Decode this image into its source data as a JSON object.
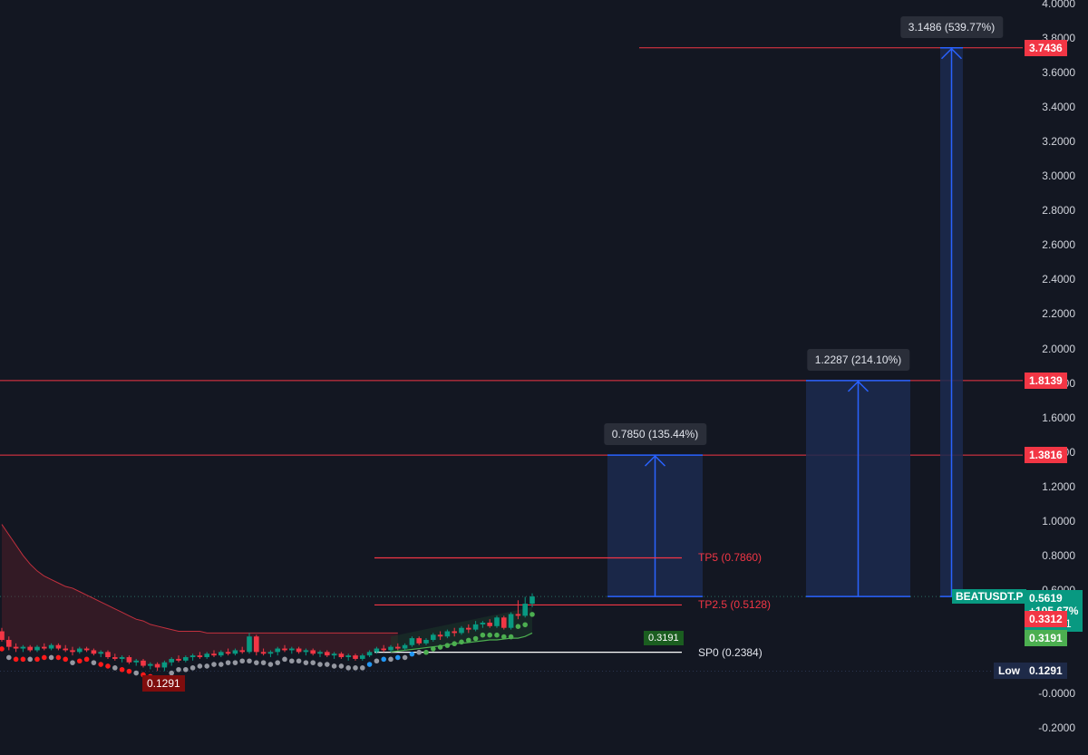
{
  "colors": {
    "background": "#131722",
    "level_line": "#f23645",
    "up_candle": "#089981",
    "down_candle": "#f23645",
    "projection_fill": "#1c2a4f",
    "projection_arrow": "#2962ff",
    "price_tag": "#089981",
    "green_tag": "#4caf50",
    "low_tag": "#1e2a48",
    "low_marker": "#7f0d0d"
  },
  "symbol": {
    "name": "BEATUSDT.P",
    "price": "0.5619",
    "change": "+105.67%",
    "countdown": "13:45:41"
  },
  "right_axis_tags": {
    "level_1": "3.7436",
    "level_2": "1.8139",
    "level_3": "1.3816",
    "red_price": "0.3312",
    "green_price": "0.3191",
    "low_label": "Low",
    "low_value": "0.1291"
  },
  "low_marker_label": "0.1291",
  "green_marker_label": "0.3191",
  "projections": [
    {
      "label": "0.7850 (135.44%)",
      "from": 0.5619,
      "to": 1.3816
    },
    {
      "label": "1.2287 (214.10%)",
      "from": 0.5619,
      "to": 1.8139
    },
    {
      "label": "3.1486 (539.77%)",
      "from": 0.5619,
      "to": 3.7436
    }
  ],
  "chart_data": {
    "type": "line",
    "title": "",
    "xlabel": "",
    "ylabel": "",
    "ylim": [
      -0.2,
      4.0
    ],
    "y_ticks": [
      "4.0000",
      "3.8000",
      "3.6000",
      "3.4000",
      "3.2000",
      "3.0000",
      "2.8000",
      "2.6000",
      "2.4000",
      "2.2000",
      "2.0000",
      "1.8000",
      "1.6000",
      "1.4000",
      "1.2000",
      "1.0000",
      "0.8000",
      "0.6000",
      "-0.0000",
      "-0.2000"
    ],
    "y_tick_values": [
      4.0,
      3.8,
      3.6,
      3.4,
      3.2,
      3.0,
      2.8,
      2.6,
      2.4,
      2.2,
      2.0,
      1.8,
      1.6,
      1.4,
      1.2,
      1.0,
      0.8,
      0.6,
      0.0,
      -0.2
    ],
    "levels": [
      {
        "label": "TP5 (0.7860)",
        "value": 0.786
      },
      {
        "label": "TP2.5 (0.5128)",
        "value": 0.5128
      },
      {
        "label": "SP0 (0.2384)",
        "value": 0.2384
      }
    ],
    "resistance_levels": [
      3.7436,
      1.8139,
      1.3816
    ],
    "current_price": 0.5619,
    "low": 0.1291,
    "candles": [
      {
        "o": 0.36,
        "h": 0.38,
        "l": 0.3,
        "c": 0.31
      },
      {
        "o": 0.31,
        "h": 0.33,
        "l": 0.25,
        "c": 0.27
      },
      {
        "o": 0.27,
        "h": 0.29,
        "l": 0.24,
        "c": 0.26
      },
      {
        "o": 0.26,
        "h": 0.28,
        "l": 0.24,
        "c": 0.27
      },
      {
        "o": 0.27,
        "h": 0.28,
        "l": 0.24,
        "c": 0.25
      },
      {
        "o": 0.25,
        "h": 0.28,
        "l": 0.24,
        "c": 0.27
      },
      {
        "o": 0.27,
        "h": 0.29,
        "l": 0.25,
        "c": 0.26
      },
      {
        "o": 0.26,
        "h": 0.29,
        "l": 0.25,
        "c": 0.28
      },
      {
        "o": 0.28,
        "h": 0.29,
        "l": 0.25,
        "c": 0.26
      },
      {
        "o": 0.26,
        "h": 0.28,
        "l": 0.24,
        "c": 0.25
      },
      {
        "o": 0.25,
        "h": 0.27,
        "l": 0.22,
        "c": 0.24
      },
      {
        "o": 0.24,
        "h": 0.27,
        "l": 0.23,
        "c": 0.26
      },
      {
        "o": 0.26,
        "h": 0.27,
        "l": 0.24,
        "c": 0.25
      },
      {
        "o": 0.25,
        "h": 0.26,
        "l": 0.22,
        "c": 0.23
      },
      {
        "o": 0.23,
        "h": 0.25,
        "l": 0.21,
        "c": 0.24
      },
      {
        "o": 0.24,
        "h": 0.25,
        "l": 0.2,
        "c": 0.21
      },
      {
        "o": 0.21,
        "h": 0.23,
        "l": 0.19,
        "c": 0.2
      },
      {
        "o": 0.2,
        "h": 0.22,
        "l": 0.18,
        "c": 0.21
      },
      {
        "o": 0.21,
        "h": 0.22,
        "l": 0.17,
        "c": 0.18
      },
      {
        "o": 0.18,
        "h": 0.2,
        "l": 0.16,
        "c": 0.19
      },
      {
        "o": 0.19,
        "h": 0.2,
        "l": 0.15,
        "c": 0.16
      },
      {
        "o": 0.16,
        "h": 0.18,
        "l": 0.14,
        "c": 0.17
      },
      {
        "o": 0.17,
        "h": 0.18,
        "l": 0.13,
        "c": 0.15
      },
      {
        "o": 0.15,
        "h": 0.19,
        "l": 0.1291,
        "c": 0.18
      },
      {
        "o": 0.18,
        "h": 0.21,
        "l": 0.16,
        "c": 0.2
      },
      {
        "o": 0.2,
        "h": 0.22,
        "l": 0.18,
        "c": 0.19
      },
      {
        "o": 0.19,
        "h": 0.22,
        "l": 0.18,
        "c": 0.21
      },
      {
        "o": 0.21,
        "h": 0.23,
        "l": 0.19,
        "c": 0.22
      },
      {
        "o": 0.22,
        "h": 0.24,
        "l": 0.2,
        "c": 0.21
      },
      {
        "o": 0.21,
        "h": 0.24,
        "l": 0.2,
        "c": 0.23
      },
      {
        "o": 0.23,
        "h": 0.25,
        "l": 0.21,
        "c": 0.22
      },
      {
        "o": 0.22,
        "h": 0.25,
        "l": 0.21,
        "c": 0.24
      },
      {
        "o": 0.24,
        "h": 0.26,
        "l": 0.22,
        "c": 0.23
      },
      {
        "o": 0.23,
        "h": 0.26,
        "l": 0.22,
        "c": 0.25
      },
      {
        "o": 0.25,
        "h": 0.27,
        "l": 0.23,
        "c": 0.24
      },
      {
        "o": 0.24,
        "h": 0.35,
        "l": 0.23,
        "c": 0.33
      },
      {
        "o": 0.33,
        "h": 0.34,
        "l": 0.22,
        "c": 0.24
      },
      {
        "o": 0.24,
        "h": 0.26,
        "l": 0.22,
        "c": 0.23
      },
      {
        "o": 0.23,
        "h": 0.25,
        "l": 0.21,
        "c": 0.24
      },
      {
        "o": 0.24,
        "h": 0.27,
        "l": 0.22,
        "c": 0.26
      },
      {
        "o": 0.26,
        "h": 0.28,
        "l": 0.24,
        "c": 0.25
      },
      {
        "o": 0.25,
        "h": 0.27,
        "l": 0.23,
        "c": 0.26
      },
      {
        "o": 0.26,
        "h": 0.27,
        "l": 0.23,
        "c": 0.24
      },
      {
        "o": 0.24,
        "h": 0.26,
        "l": 0.22,
        "c": 0.25
      },
      {
        "o": 0.25,
        "h": 0.26,
        "l": 0.22,
        "c": 0.23
      },
      {
        "o": 0.23,
        "h": 0.25,
        "l": 0.21,
        "c": 0.24
      },
      {
        "o": 0.24,
        "h": 0.25,
        "l": 0.21,
        "c": 0.22
      },
      {
        "o": 0.22,
        "h": 0.24,
        "l": 0.2,
        "c": 0.23
      },
      {
        "o": 0.23,
        "h": 0.24,
        "l": 0.2,
        "c": 0.21
      },
      {
        "o": 0.21,
        "h": 0.23,
        "l": 0.19,
        "c": 0.22
      },
      {
        "o": 0.22,
        "h": 0.23,
        "l": 0.19,
        "c": 0.2
      },
      {
        "o": 0.2,
        "h": 0.23,
        "l": 0.19,
        "c": 0.22
      },
      {
        "o": 0.22,
        "h": 0.25,
        "l": 0.21,
        "c": 0.24
      },
      {
        "o": 0.24,
        "h": 0.27,
        "l": 0.23,
        "c": 0.26
      },
      {
        "o": 0.26,
        "h": 0.28,
        "l": 0.24,
        "c": 0.25
      },
      {
        "o": 0.25,
        "h": 0.28,
        "l": 0.24,
        "c": 0.27
      },
      {
        "o": 0.27,
        "h": 0.29,
        "l": 0.25,
        "c": 0.26
      },
      {
        "o": 0.26,
        "h": 0.29,
        "l": 0.25,
        "c": 0.28
      },
      {
        "o": 0.28,
        "h": 0.33,
        "l": 0.27,
        "c": 0.32
      },
      {
        "o": 0.32,
        "h": 0.33,
        "l": 0.28,
        "c": 0.29
      },
      {
        "o": 0.29,
        "h": 0.32,
        "l": 0.28,
        "c": 0.31
      },
      {
        "o": 0.31,
        "h": 0.35,
        "l": 0.3,
        "c": 0.34
      },
      {
        "o": 0.34,
        "h": 0.36,
        "l": 0.31,
        "c": 0.33
      },
      {
        "o": 0.33,
        "h": 0.37,
        "l": 0.32,
        "c": 0.36
      },
      {
        "o": 0.36,
        "h": 0.38,
        "l": 0.33,
        "c": 0.35
      },
      {
        "o": 0.35,
        "h": 0.39,
        "l": 0.34,
        "c": 0.38
      },
      {
        "o": 0.38,
        "h": 0.4,
        "l": 0.35,
        "c": 0.37
      },
      {
        "o": 0.37,
        "h": 0.42,
        "l": 0.36,
        "c": 0.4
      },
      {
        "o": 0.4,
        "h": 0.42,
        "l": 0.38,
        "c": 0.41
      },
      {
        "o": 0.41,
        "h": 0.43,
        "l": 0.38,
        "c": 0.39
      },
      {
        "o": 0.39,
        "h": 0.45,
        "l": 0.38,
        "c": 0.44
      },
      {
        "o": 0.44,
        "h": 0.45,
        "l": 0.37,
        "c": 0.38
      },
      {
        "o": 0.38,
        "h": 0.47,
        "l": 0.37,
        "c": 0.46
      },
      {
        "o": 0.46,
        "h": 0.54,
        "l": 0.43,
        "c": 0.45
      },
      {
        "o": 0.45,
        "h": 0.56,
        "l": 0.44,
        "c": 0.52
      },
      {
        "o": 0.52,
        "h": 0.58,
        "l": 0.5,
        "c": 0.5619
      }
    ],
    "cloud_upper": [
      0.98,
      0.92,
      0.86,
      0.8,
      0.75,
      0.71,
      0.68,
      0.66,
      0.64,
      0.62,
      0.61,
      0.59,
      0.57,
      0.55,
      0.53,
      0.51,
      0.49,
      0.47,
      0.45,
      0.43,
      0.42,
      0.4,
      0.39,
      0.38,
      0.37,
      0.36,
      0.36,
      0.36,
      0.36,
      0.35,
      0.35,
      0.35,
      0.35,
      0.35,
      0.35,
      0.35,
      0.35,
      0.35,
      0.35,
      0.35,
      0.35,
      0.35,
      0.35,
      0.35,
      0.35,
      0.35,
      0.35,
      0.35,
      0.35,
      0.35,
      0.35,
      0.35,
      0.35,
      0.35,
      0.35,
      0.35,
      0.35
    ],
    "trail_line": [
      0.24,
      0.245,
      0.25,
      0.255,
      0.26,
      0.265,
      0.27,
      0.275,
      0.28,
      0.29,
      0.29,
      0.295,
      0.3,
      0.305,
      0.31,
      0.31,
      0.315,
      0.32,
      0.32,
      0.33,
      0.35
    ]
  }
}
